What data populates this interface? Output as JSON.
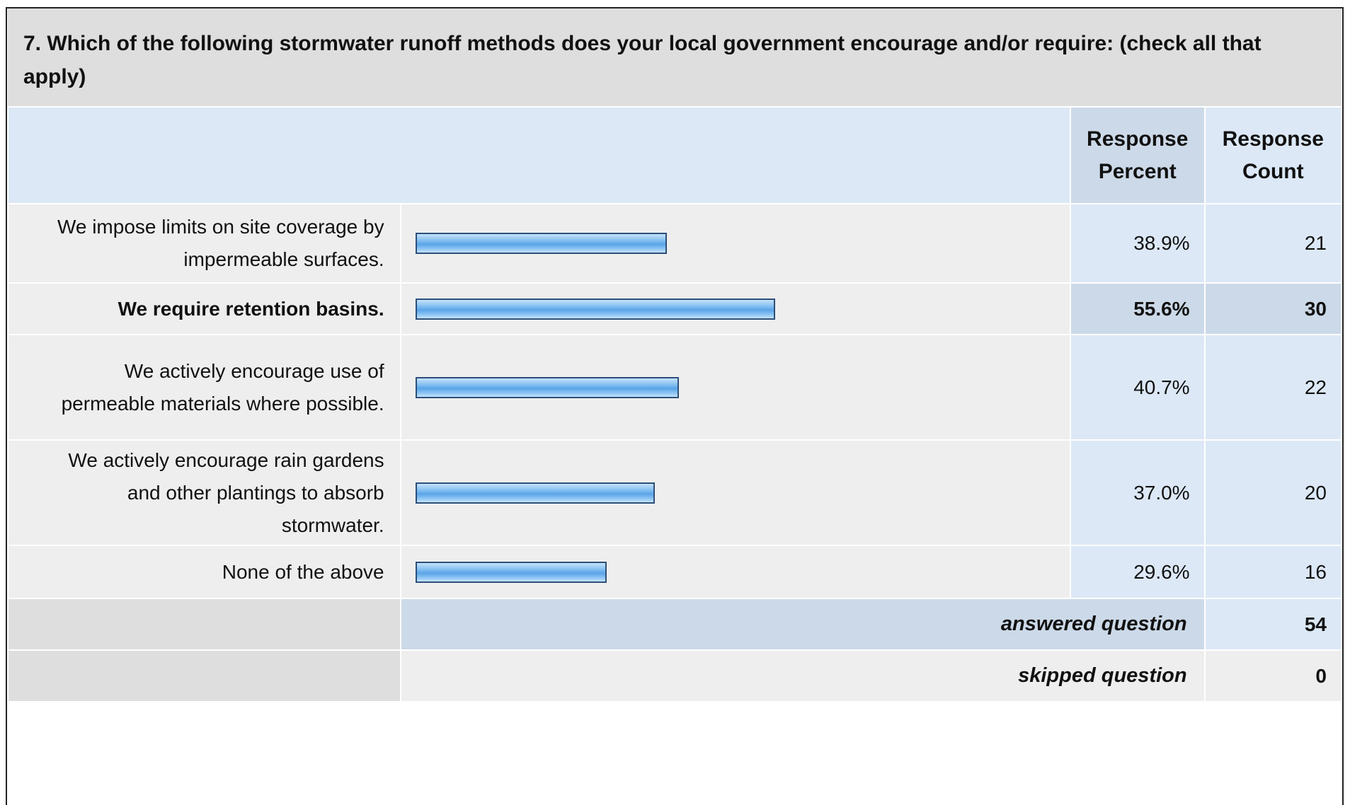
{
  "question": {
    "title": "7. Which of the following stormwater runoff methods does your local government encourage and/or require: (check all that apply)"
  },
  "header": {
    "response_percent": "Response Percent",
    "response_count": "Response Count"
  },
  "colors": {
    "bar_border": "#2c4f7a",
    "bar_fill": "#5aa4e8",
    "header_bg": "#dce8f6",
    "row_bg": "#eeeeee"
  },
  "rows": [
    {
      "label": "We impose limits on site coverage by impermeable surfaces.",
      "percent": "38.9%",
      "count": "21",
      "highlight": false
    },
    {
      "label": "We require retention basins.",
      "percent": "55.6%",
      "count": "30",
      "highlight": true
    },
    {
      "label": "We actively encourage use of permeable materials where possible.",
      "percent": "40.7%",
      "count": "22",
      "highlight": false
    },
    {
      "label": "We actively encourage rain gardens and other plantings to absorb stormwater.",
      "percent": "37.0%",
      "count": "20",
      "highlight": false
    },
    {
      "label": "None of the above",
      "percent": "29.6%",
      "count": "16",
      "highlight": false
    }
  ],
  "summary": {
    "answered_label": "answered question",
    "answered_value": "54",
    "skipped_label": "skipped question",
    "skipped_value": "0"
  },
  "chart_data": {
    "type": "bar",
    "orientation": "horizontal",
    "categories": [
      "We impose limits on site coverage by impermeable surfaces.",
      "We require retention basins.",
      "We actively encourage use of permeable materials where possible.",
      "We actively encourage rain gardens and other plantings to absorb stormwater.",
      "None of the above"
    ],
    "values": [
      38.9,
      55.6,
      40.7,
      37.0,
      29.6
    ],
    "counts": [
      21,
      30,
      22,
      20,
      16
    ],
    "xlim": [
      0,
      100
    ]
  }
}
